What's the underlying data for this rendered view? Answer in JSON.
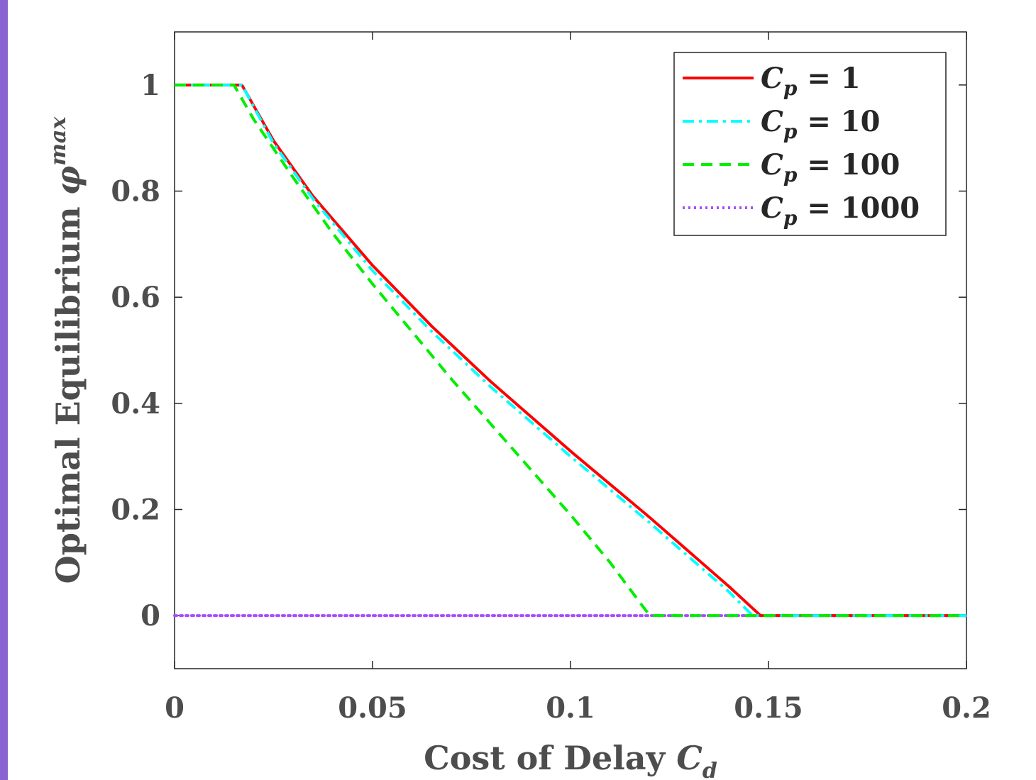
{
  "chart_data": {
    "type": "line",
    "xlabel": {
      "text": "Cost of Delay ",
      "math": "C",
      "sub": "d"
    },
    "ylabel": {
      "text": "Optimal Equilibrium ",
      "math": "φ",
      "sup": "max"
    },
    "xlim": [
      0,
      0.2
    ],
    "ylim": [
      -0.1,
      1.1
    ],
    "xticks": [
      {
        "v": 0,
        "label": "0"
      },
      {
        "v": 0.05,
        "label": "0.05"
      },
      {
        "v": 0.1,
        "label": "0.1"
      },
      {
        "v": 0.15,
        "label": "0.15"
      },
      {
        "v": 0.2,
        "label": "0.2"
      }
    ],
    "yticks": [
      {
        "v": 0,
        "label": "0"
      },
      {
        "v": 0.2,
        "label": "0.2"
      },
      {
        "v": 0.4,
        "label": "0.4"
      },
      {
        "v": 0.6,
        "label": "0.6"
      },
      {
        "v": 0.8,
        "label": "0.8"
      },
      {
        "v": 1,
        "label": "1"
      }
    ],
    "grid": false,
    "legend_position": "top-right",
    "series": [
      {
        "name": "C_p = 1",
        "legend_math": "C",
        "legend_sub": "p",
        "legend_rest": " = 1",
        "color": "#ff0000",
        "style": "solid",
        "x": [
          0,
          0.017,
          0.025,
          0.035,
          0.05,
          0.065,
          0.08,
          0.1,
          0.12,
          0.14,
          0.148,
          0.2
        ],
        "y": [
          1,
          1,
          0.895,
          0.79,
          0.66,
          0.545,
          0.44,
          0.31,
          0.185,
          0.055,
          0,
          0
        ]
      },
      {
        "name": "C_p = 10",
        "legend_math": "C",
        "legend_sub": "p",
        "legend_rest": " = 10",
        "color": "#00ffff",
        "style": "dashdot",
        "x": [
          0,
          0.017,
          0.025,
          0.035,
          0.05,
          0.065,
          0.08,
          0.1,
          0.12,
          0.14,
          0.146,
          0.2
        ],
        "y": [
          1,
          1,
          0.89,
          0.785,
          0.65,
          0.535,
          0.43,
          0.3,
          0.175,
          0.045,
          0,
          0
        ]
      },
      {
        "name": "C_p = 100",
        "legend_math": "C",
        "legend_sub": "p",
        "legend_rest": " = 100",
        "color": "#00ee00",
        "style": "dashed",
        "x": [
          0,
          0.015,
          0.02,
          0.03,
          0.04,
          0.05,
          0.06,
          0.07,
          0.08,
          0.09,
          0.1,
          0.11,
          0.12,
          0.2
        ],
        "y": [
          1,
          1,
          0.935,
          0.825,
          0.72,
          0.625,
          0.535,
          0.445,
          0.36,
          0.275,
          0.19,
          0.1,
          0,
          0
        ]
      },
      {
        "name": "C_p = 1000",
        "legend_math": "C",
        "legend_sub": "p",
        "legend_rest": " = 1000",
        "color": "#a64dff",
        "style": "dotted",
        "x": [
          0,
          0.2
        ],
        "y": [
          0,
          0
        ]
      }
    ]
  }
}
